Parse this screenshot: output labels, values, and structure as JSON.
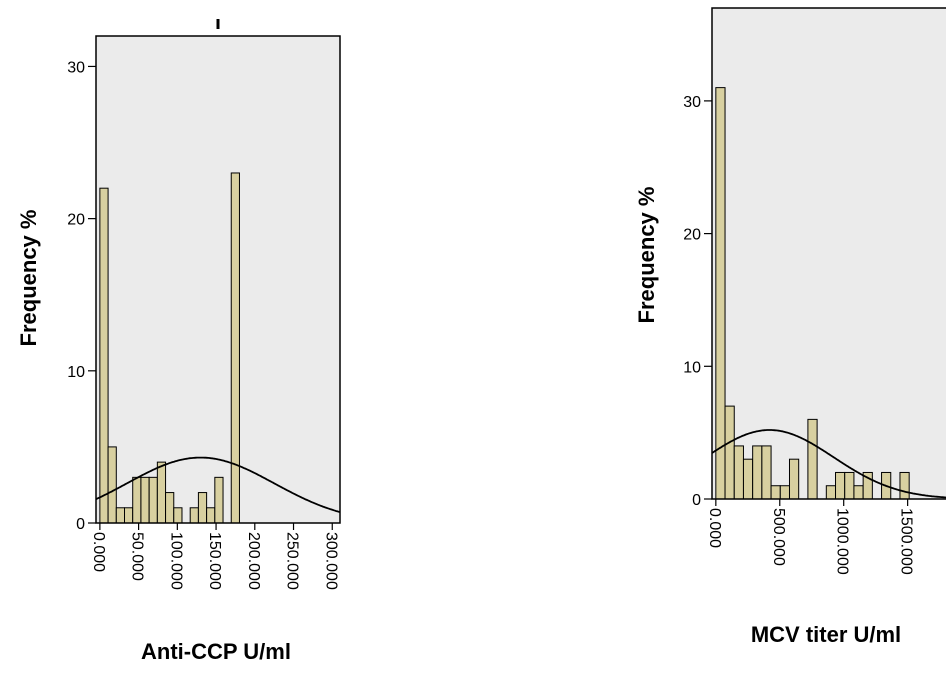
{
  "chart_data": [
    {
      "type": "bar",
      "subtype": "histogram",
      "xlabel": "Anti-CCP U/ml",
      "ylabel": "Frequency %",
      "xlim": [
        -5,
        310
      ],
      "ylim": [
        0,
        32
      ],
      "x_ticks": [
        0,
        50,
        100,
        150,
        200,
        250,
        300
      ],
      "x_tick_labels": [
        "0.000",
        "50.000",
        "100.000",
        "150.000",
        "200.000",
        "250.000",
        "300.000"
      ],
      "y_ticks": [
        0,
        10,
        20,
        30
      ],
      "y_tick_labels": [
        "0",
        "10",
        "20",
        "30"
      ],
      "bin_width": 10.6,
      "bin_starts": [
        0,
        10.6,
        21.2,
        31.8,
        42.4,
        53,
        63.6,
        74.2,
        84.8,
        95.4,
        106,
        116.6,
        127.2,
        137.8,
        148.4,
        159,
        169.6,
        180.2,
        190.8,
        201.4,
        212,
        222.6,
        233.2,
        243.8,
        254.4,
        265
      ],
      "values": [
        22,
        5,
        1,
        1,
        3,
        3,
        3,
        4,
        2,
        1,
        0,
        1,
        2,
        1,
        3,
        0,
        23,
        0,
        0,
        0,
        0,
        0,
        0,
        0,
        0,
        0
      ],
      "normal_curve": {
        "mean": 130,
        "sd": 95,
        "peak": 4.3
      },
      "fill_color": "#d8d0a0",
      "background_color": "#ebebeb",
      "grid": false
    },
    {
      "type": "bar",
      "subtype": "histogram",
      "xlabel": "MCV titer U/ml",
      "ylabel": "Frequency %",
      "xlim": [
        -30,
        1800
      ],
      "ylim": [
        0,
        37
      ],
      "x_ticks": [
        0,
        500,
        1000,
        1500
      ],
      "x_tick_labels": [
        "0.000",
        "500.000",
        "1000.000",
        "1500.000"
      ],
      "y_ticks": [
        0,
        10,
        20,
        30
      ],
      "y_tick_labels": [
        "0",
        "10",
        "20",
        "30"
      ],
      "bin_width": 72,
      "bin_starts": [
        0,
        72,
        144,
        216,
        288,
        360,
        432,
        504,
        576,
        648,
        720,
        792,
        864,
        936,
        1008,
        1080,
        1152,
        1224,
        1296,
        1368,
        1440,
        1512,
        1584,
        1656
      ],
      "values": [
        31,
        7,
        4,
        3,
        4,
        4,
        1,
        1,
        3,
        0,
        6,
        0,
        1,
        2,
        2,
        1,
        2,
        0,
        2,
        0,
        2,
        0,
        0,
        0
      ],
      "normal_curve": {
        "mean": 420,
        "sd": 500,
        "peak": 5.2
      },
      "fill_color": "#d8d0a0",
      "background_color": "#ebebeb",
      "grid": false
    }
  ]
}
